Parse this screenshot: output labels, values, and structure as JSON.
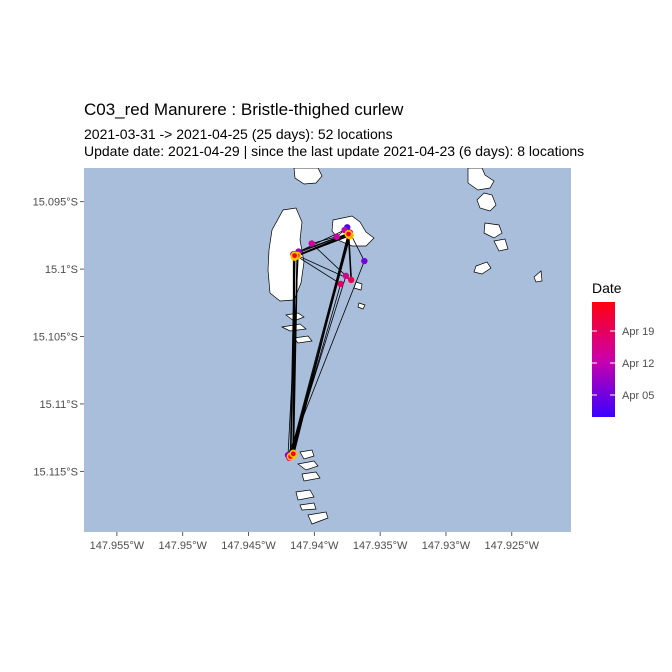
{
  "title": "C03_red Manurere :  Bristle-thighed curlew",
  "subtitle_line1": "2021-03-31 -> 2021-04-25 (25 days): 52 locations",
  "subtitle_line2": "Update date: 2021-04-29 |  since the last update 2021-04-23 (6 days): 8 locations",
  "colors": {
    "sea": "#a8bedb",
    "land": "#ffffff",
    "track": "#000000",
    "gradient_low": "#3a00ff",
    "gradient_mid": "#cc00aa",
    "gradient_high": "#ff0010",
    "highlight": "#ffc000"
  },
  "legend": {
    "title": "Date",
    "labels": [
      "Apr 19",
      "Apr 12",
      "Apr 05"
    ]
  },
  "chart_data": {
    "type": "scatter",
    "x_ticks": [
      "147.955°W",
      "147.95°W",
      "147.945°W",
      "147.94°W",
      "147.935°W",
      "147.93°W",
      "147.925°W"
    ],
    "y_ticks": [
      "15.095°S",
      "15.1°S",
      "15.105°S",
      "15.11°S",
      "15.115°S"
    ],
    "xlim": [
      -147.9575,
      -147.9205
    ],
    "ylim": [
      -15.1195,
      -15.0925
    ],
    "points": [
      {
        "lon": -147.9375,
        "lat": -15.0969,
        "day": 2,
        "last": false
      },
      {
        "lon": -147.9362,
        "lat": -15.0994,
        "day": 5,
        "last": false
      },
      {
        "lon": -147.942,
        "lat": -15.1138,
        "day": 6,
        "last": false
      },
      {
        "lon": -147.9412,
        "lat": -15.0987,
        "day": 8,
        "last": false
      },
      {
        "lon": -147.9373,
        "lat": -15.0973,
        "day": 9,
        "last": false
      },
      {
        "lon": -147.9416,
        "lat": -15.1136,
        "day": 10,
        "last": false
      },
      {
        "lon": -147.9416,
        "lat": -15.0989,
        "day": 11,
        "last": false
      },
      {
        "lon": -147.9377,
        "lat": -15.0971,
        "day": 12,
        "last": false
      },
      {
        "lon": -147.9383,
        "lat": -15.0976,
        "day": 13,
        "last": false
      },
      {
        "lon": -147.9402,
        "lat": -15.0981,
        "day": 14,
        "last": false
      },
      {
        "lon": -147.9376,
        "lat": -15.1005,
        "day": 15,
        "last": false
      },
      {
        "lon": -147.9419,
        "lat": -15.114,
        "day": 15,
        "last": false
      },
      {
        "lon": -147.9374,
        "lat": -15.0974,
        "day": 16,
        "last": false
      },
      {
        "lon": -147.9414,
        "lat": -15.099,
        "day": 17,
        "last": false
      },
      {
        "lon": -147.938,
        "lat": -15.1011,
        "day": 18,
        "last": false
      },
      {
        "lon": -147.9417,
        "lat": -15.1137,
        "day": 18,
        "last": false
      },
      {
        "lon": -147.9373,
        "lat": -15.0973,
        "day": 19,
        "last": false
      },
      {
        "lon": -147.9415,
        "lat": -15.0989,
        "day": 19,
        "last": false
      },
      {
        "lon": -147.9372,
        "lat": -15.1008,
        "day": 20,
        "last": false
      },
      {
        "lon": -147.9374,
        "lat": -15.0974,
        "day": 21,
        "last": true
      },
      {
        "lon": -147.9416,
        "lat": -15.1138,
        "day": 22,
        "last": true
      },
      {
        "lon": -147.9413,
        "lat": -15.099,
        "day": 22,
        "last": true
      },
      {
        "lon": -147.9373,
        "lat": -15.0975,
        "day": 23,
        "last": true
      },
      {
        "lon": -147.9418,
        "lat": -15.1139,
        "day": 23,
        "last": true
      },
      {
        "lon": -147.9415,
        "lat": -15.0991,
        "day": 24,
        "last": true
      },
      {
        "lon": -147.9374,
        "lat": -15.0974,
        "day": 24,
        "last": true
      },
      {
        "lon": -147.9416,
        "lat": -15.1137,
        "day": 25,
        "last": true
      },
      {
        "lon": -147.9415,
        "lat": -15.099,
        "day": 25,
        "last": true
      }
    ]
  }
}
